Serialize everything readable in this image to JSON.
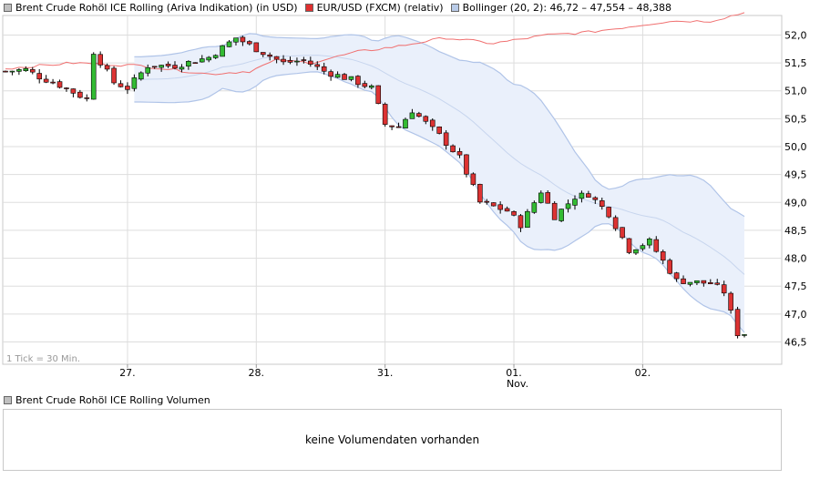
{
  "legend": [
    {
      "label": "Brent Crude Rohöl ICE Rolling (Ariva Indikation) (in USD)",
      "color": "#c0c0c0"
    },
    {
      "label": "EUR/USD (FXCM) (relativ)",
      "color": "#e03030"
    },
    {
      "label": "Bollinger (20, 2): 46,72 – 47,554 – 48,388",
      "color": "#b9cbe8"
    }
  ],
  "tick_note": "1 Tick = 30 Min.",
  "volume": {
    "legend_label": "Brent Crude Rohöl ICE Rolling Volumen",
    "legend_color": "#c0c0c0",
    "message": "keine Volumendaten vorhanden"
  },
  "chart_data": {
    "type": "candlestick",
    "interval": "30 Min.",
    "ylim": [
      46.1,
      52.35
    ],
    "yticks": [
      "46,5",
      "47,0",
      "47,5",
      "48,0",
      "48,5",
      "49,0",
      "49,5",
      "50,0",
      "50,5",
      "51,0",
      "51,5",
      "52,0"
    ],
    "xticks": [
      {
        "label": "27.",
        "sublabel": "",
        "index": 18
      },
      {
        "label": "28.",
        "sublabel": "",
        "index": 37
      },
      {
        "label": "31.",
        "sublabel": "",
        "index": 56
      },
      {
        "label": "01.",
        "sublabel": "Nov.",
        "index": 75
      },
      {
        "label": "02.",
        "sublabel": "",
        "index": 94
      }
    ],
    "num_bars": 110,
    "colors": {
      "up": "#33bb33",
      "down": "#dd3333",
      "eurusd": "#f07070",
      "bollinger_band": "#b0c4e8",
      "bollinger_fill": "#eaf0fb",
      "grid": "#dddddd"
    },
    "bollinger_label": "Bollinger (20, 2): 46,72 – 47,554 – 48,388",
    "bollinger": {
      "upper": 48.388,
      "middle": 47.554,
      "lower": 46.72
    },
    "price_keypoints": [
      [
        0,
        51.35
      ],
      [
        3,
        51.38
      ],
      [
        5,
        51.25
      ],
      [
        8,
        51.1
      ],
      [
        12,
        50.85
      ],
      [
        13,
        51.7
      ],
      [
        16,
        51.15
      ],
      [
        18,
        51.05
      ],
      [
        21,
        51.45
      ],
      [
        25,
        51.45
      ],
      [
        30,
        51.6
      ],
      [
        34,
        51.95
      ],
      [
        37,
        51.75
      ],
      [
        41,
        51.5
      ],
      [
        44,
        51.55
      ],
      [
        47,
        51.35
      ],
      [
        51,
        51.2
      ],
      [
        54,
        51.05
      ],
      [
        56,
        50.4
      ],
      [
        58,
        50.35
      ],
      [
        60,
        50.65
      ],
      [
        64,
        50.2
      ],
      [
        67,
        49.8
      ],
      [
        70,
        49.0
      ],
      [
        74,
        48.85
      ],
      [
        76,
        48.6
      ],
      [
        79,
        49.2
      ],
      [
        81,
        48.75
      ],
      [
        84,
        49.1
      ],
      [
        86,
        49.15
      ],
      [
        89,
        48.8
      ],
      [
        92,
        48.15
      ],
      [
        95,
        48.3
      ],
      [
        97,
        47.95
      ],
      [
        99,
        47.6
      ],
      [
        104,
        47.55
      ],
      [
        106,
        47.4
      ],
      [
        108,
        46.65
      ],
      [
        109,
        46.65
      ]
    ],
    "eurusd_keypoints": [
      [
        0,
        51.4
      ],
      [
        10,
        51.5
      ],
      [
        20,
        51.45
      ],
      [
        30,
        51.3
      ],
      [
        36,
        51.35
      ],
      [
        40,
        51.55
      ],
      [
        45,
        51.5
      ],
      [
        52,
        51.7
      ],
      [
        58,
        51.8
      ],
      [
        65,
        51.95
      ],
      [
        72,
        51.85
      ],
      [
        80,
        52.0
      ],
      [
        86,
        52.05
      ],
      [
        92,
        52.15
      ],
      [
        98,
        52.25
      ],
      [
        104,
        52.25
      ],
      [
        109,
        52.4
      ]
    ]
  }
}
